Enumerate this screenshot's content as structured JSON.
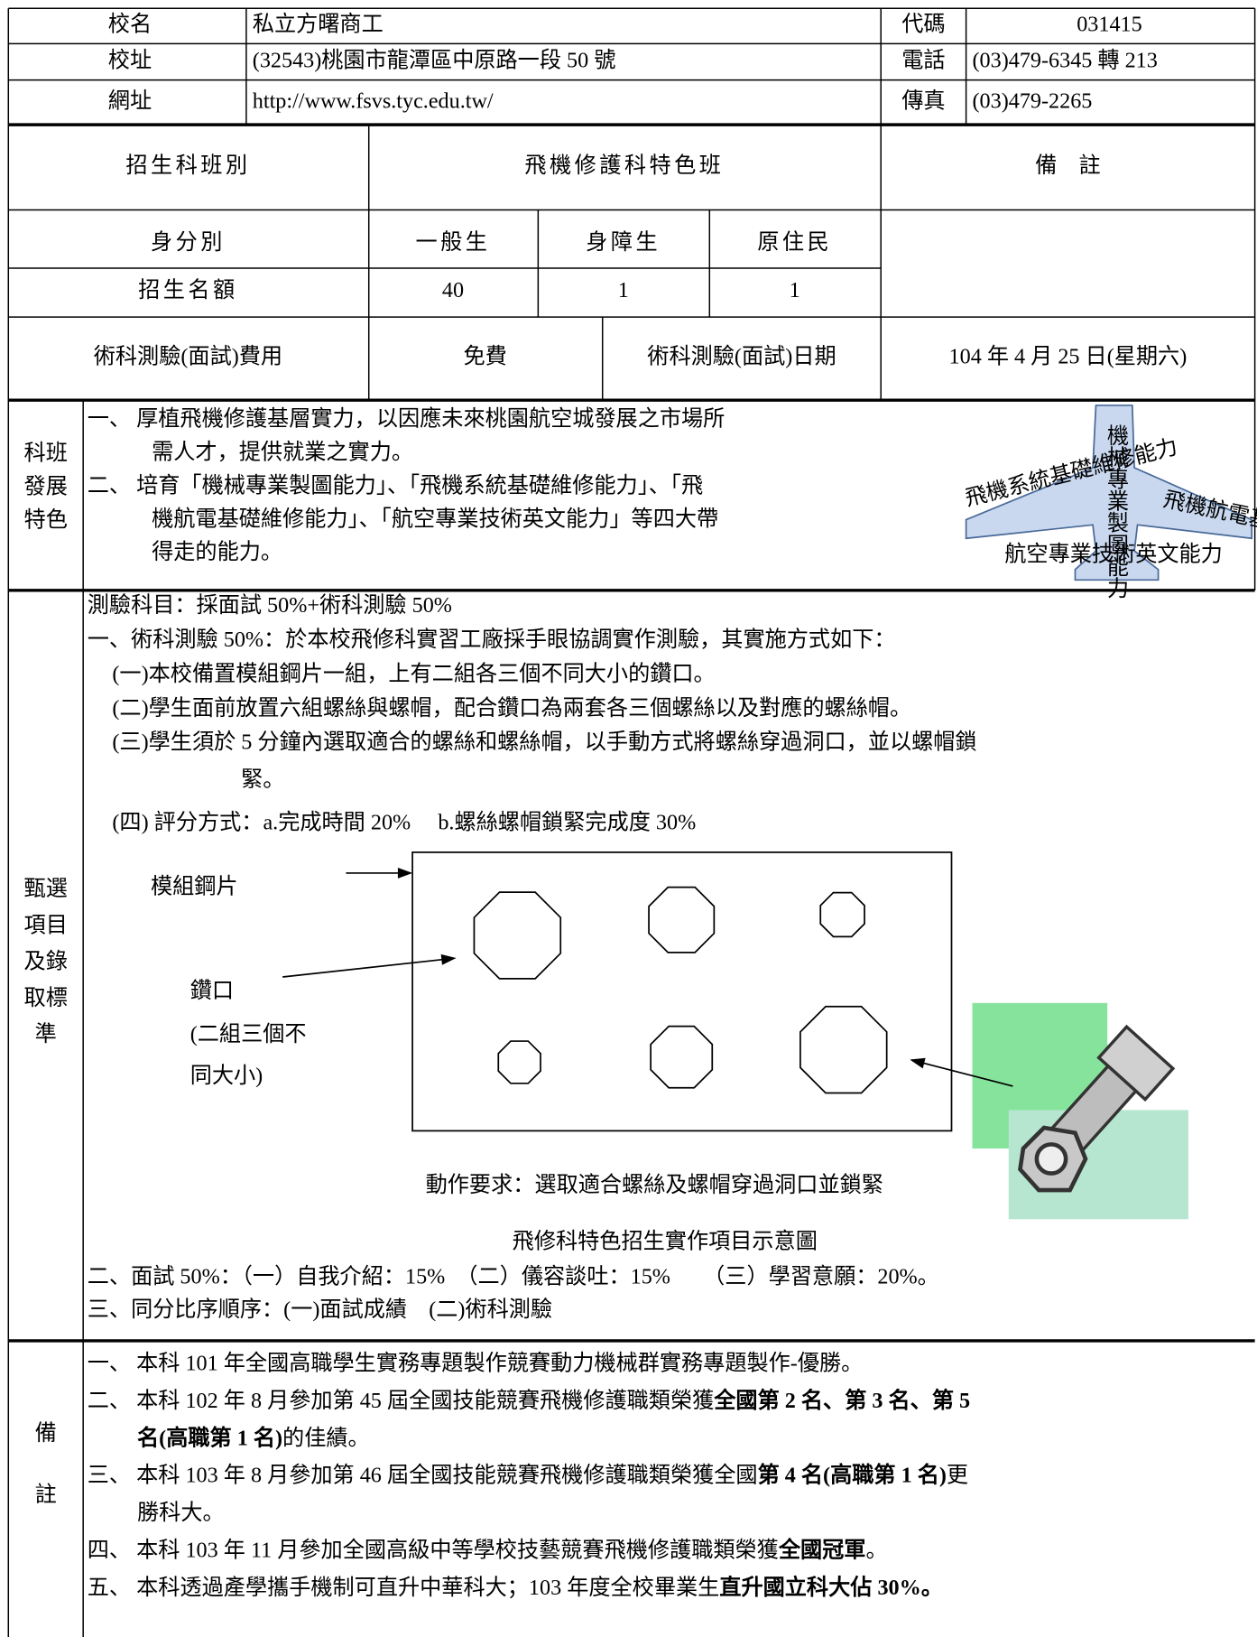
{
  "school": {
    "name_label": "校名",
    "name": "私立方曙商工",
    "code_label": "代碼",
    "code": "031415",
    "address_label": "校址",
    "address": "(32543)桃園市龍潭區中原路一段 50 號",
    "phone_label": "電話",
    "phone": "(03)479-6345 轉 213",
    "web_label": "網址",
    "web": "http://www.fsvs.tyc.edu.tw/",
    "fax_label": "傳真",
    "fax": "(03)479-2265"
  },
  "program": {
    "label": "招生科班別",
    "name": "飛機修護科特色班",
    "remark_label": "備　註"
  },
  "quota": {
    "identity_label": "身分別",
    "quota_label": "招生名額",
    "headers": [
      "一般生",
      "身障生",
      "原住民"
    ],
    "values": [
      40,
      1,
      1
    ]
  },
  "exam": {
    "fee_label": "術科測驗(面試)費用",
    "fee": "免費",
    "date_label": "術科測驗(面試)日期",
    "date": "104 年 4 月 25 日(星期六)"
  },
  "features": {
    "label": [
      "科班",
      "發展",
      "特色"
    ],
    "lines": [
      "一、 厚植飛機修護基層實力，以因應未來桃園航空城發展之市場所",
      "需人才，提供就業之實力。",
      "二、 培育「機械專業製圖能力」、「飛機系統基礎維修能力」、「飛",
      "機航電基礎維修能力」、「航空專業技術英文能力」等四大帶",
      "得走的能力。"
    ],
    "logo": [
      "機械專業製圖能力",
      "飛機系統基礎維修能力",
      "飛機航電基礎維修能力",
      "航空專業技術英文能力"
    ]
  },
  "selection": {
    "label": [
      "甄選",
      "項目",
      "及錄",
      "取標",
      "準"
    ],
    "lines_top": [
      "測驗科目：採面試 50%+術科測驗 50%",
      "一、術科測驗 50%：於本校飛修科實習工廠採手眼協調實作測驗，其實施方式如下：",
      "(一)本校備置模組鋼片一組，上有二組各三個不同大小的鑽口。",
      "(二)學生面前放置六組螺絲與螺帽，配合鑽口為兩套各三個螺絲以及對應的螺絲帽。",
      "(三)學生須於 5 分鐘內選取適合的螺絲和螺絲帽，以手動方式將螺絲穿過洞口，並以螺帽鎖",
      "緊。",
      "(四) 評分方式：a.完成時間 20%　 b.螺絲螺帽鎖緊完成度 30%"
    ],
    "diagram": {
      "plate_label": "模組鋼片",
      "hole_label": [
        "鑽口",
        "(二組三個不",
        "同大小)"
      ],
      "action": "動作要求：選取適合螺絲及螺帽穿過洞口並鎖緊",
      "caption": "飛修科特色招生實作項目示意圖"
    },
    "lines_bottom": [
      "二、面試 50%：（一）自我介紹：15%　（二）儀容談吐：15%　　（三）學習意願：20%。",
      "三、同分比序順序：(一)面試成績　(二)術科測驗"
    ]
  },
  "remarks": {
    "label": [
      "備",
      "註"
    ],
    "lines": [
      [
        {
          "text": "一、 本科 101 年全國高職學生實務專題製作競賽動力機械群實務專題製作-優勝。",
          "bold": false
        }
      ],
      [
        {
          "text": "二、 本科 102 年 8 月參加第 45 屆全國技能競賽飛機修護職類榮獲",
          "bold": false
        },
        {
          "text": "全國第 2 名、第 3 名、第 5",
          "bold": true
        }
      ],
      [
        {
          "text": "名(高職第 1 名)",
          "bold": true
        },
        {
          "text": "的佳績。",
          "bold": false
        }
      ],
      [
        {
          "text": "三、 本科 103 年 8 月參加第 46 屆全國技能競賽飛機修護職類榮獲全國",
          "bold": false
        },
        {
          "text": "第 4 名(高職第 1 名)",
          "bold": true
        },
        {
          "text": "更",
          "bold": false
        }
      ],
      [
        {
          "text": "勝科大。",
          "bold": false
        }
      ],
      [
        {
          "text": "四、 本科 103 年 11 月參加全國高級中等學校技藝競賽飛機修護職類榮獲",
          "bold": false
        },
        {
          "text": "全國冠軍",
          "bold": true
        },
        {
          "text": "。",
          "bold": false
        }
      ],
      [
        {
          "text": "五、 本科透過產學攜手機制可直升中華科大；103 年度全校畢業生",
          "bold": false
        },
        {
          "text": "直升國立科大佔 30%。",
          "bold": true
        }
      ]
    ]
  }
}
